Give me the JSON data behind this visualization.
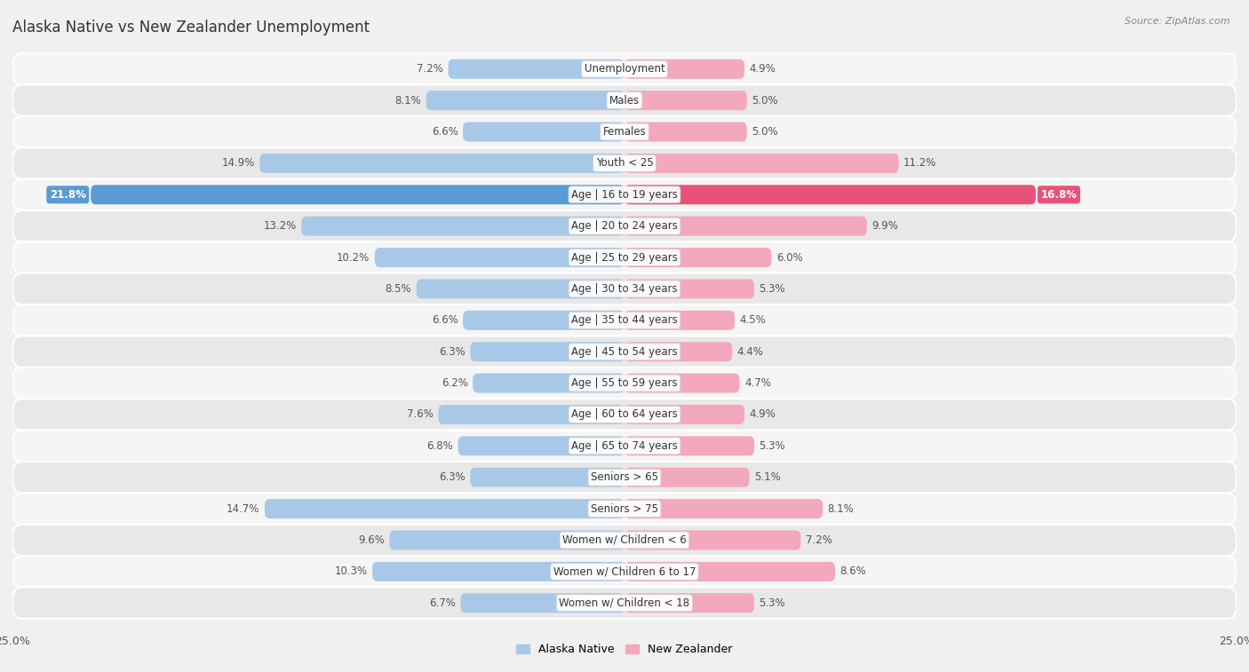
{
  "title": "Alaska Native vs New Zealander Unemployment",
  "source": "Source: ZipAtlas.com",
  "categories": [
    "Unemployment",
    "Males",
    "Females",
    "Youth < 25",
    "Age | 16 to 19 years",
    "Age | 20 to 24 years",
    "Age | 25 to 29 years",
    "Age | 30 to 34 years",
    "Age | 35 to 44 years",
    "Age | 45 to 54 years",
    "Age | 55 to 59 years",
    "Age | 60 to 64 years",
    "Age | 65 to 74 years",
    "Seniors > 65",
    "Seniors > 75",
    "Women w/ Children < 6",
    "Women w/ Children 6 to 17",
    "Women w/ Children < 18"
  ],
  "alaska_native": [
    7.2,
    8.1,
    6.6,
    14.9,
    21.8,
    13.2,
    10.2,
    8.5,
    6.6,
    6.3,
    6.2,
    7.6,
    6.8,
    6.3,
    14.7,
    9.6,
    10.3,
    6.7
  ],
  "new_zealander": [
    4.9,
    5.0,
    5.0,
    11.2,
    16.8,
    9.9,
    6.0,
    5.3,
    4.5,
    4.4,
    4.7,
    4.9,
    5.3,
    5.1,
    8.1,
    7.2,
    8.6,
    5.3
  ],
  "alaska_color": "#a8c8e8",
  "new_zealander_color": "#f4a8bc",
  "alaska_highlight_color": "#5b9bd5",
  "new_zealander_highlight_color": "#e8527a",
  "row_odd_color": "#f5f5f5",
  "row_even_color": "#e8e8e8",
  "background_color": "#f0f0f0",
  "x_max": 25.0,
  "label_fontsize": 8.5,
  "title_fontsize": 12,
  "source_fontsize": 8,
  "value_fontsize": 8.5
}
